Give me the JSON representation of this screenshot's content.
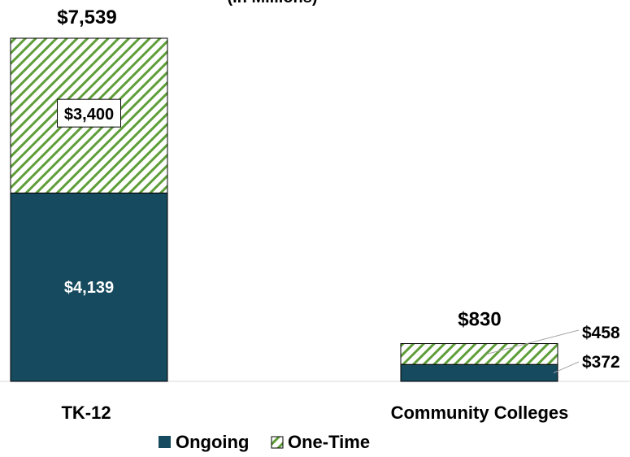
{
  "chart_data": {
    "type": "bar",
    "stacked": true,
    "subtitle": "(In Millions)",
    "categories": [
      "TK-12",
      "Community Colleges"
    ],
    "series": [
      {
        "name": "Ongoing",
        "values": [
          4139,
          372
        ],
        "labels": [
          "$4,139",
          "$372"
        ]
      },
      {
        "name": "One-Time",
        "values": [
          3400,
          458
        ],
        "labels": [
          "$3,400",
          "$458"
        ]
      }
    ],
    "totals": [
      7539,
      830
    ],
    "total_labels": [
      "$7,539",
      "$830"
    ],
    "ylim": [
      0,
      7539
    ],
    "grid": false,
    "legend_position": "bottom",
    "colors": {
      "ongoing": "#164a5e",
      "one_time_stripe": "#5f9e3a",
      "one_time_bg": "#ffffff"
    }
  }
}
